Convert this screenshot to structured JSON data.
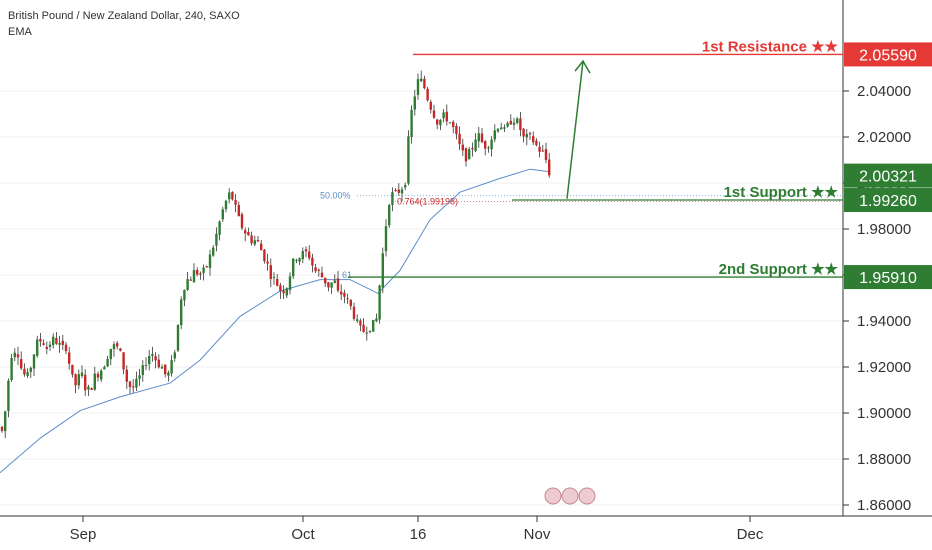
{
  "header": {
    "symbol_line": "British Pound / New Zealand Dollar, 240, SAXO",
    "indicator": "EMA"
  },
  "colors": {
    "bull": "#2e7d32",
    "bear": "#c62828",
    "wick": "#333333",
    "ema": "#5b8ec9",
    "resistance": "#e53935",
    "support": "#2e7d32",
    "fib": "#8fb3d9",
    "grid": "#f0f0f0"
  },
  "annotations": {
    "fib_50": "50.00%",
    "fib_764": "0.764(1.99198)",
    "fib_ema_tag": "61"
  },
  "chart_data": {
    "type": "candlestick",
    "title": "",
    "y_range": [
      1.86,
      2.06
    ],
    "y_ticks": [
      "1.86000",
      "1.88000",
      "1.90000",
      "1.92000",
      "1.94000",
      "1.96000",
      "1.98000",
      "2.00000",
      "2.02000",
      "2.04000"
    ],
    "x_ticks": [
      "Sep",
      "Oct",
      "16",
      "Nov",
      "Dec"
    ],
    "price_path": [
      [
        0,
        1.894
      ],
      [
        3,
        1.891
      ],
      [
        8,
        1.913
      ],
      [
        12,
        1.927
      ],
      [
        17,
        1.928
      ],
      [
        22,
        1.918
      ],
      [
        27,
        1.915
      ],
      [
        32,
        1.922
      ],
      [
        36,
        1.93
      ],
      [
        42,
        1.932
      ],
      [
        47,
        1.928
      ],
      [
        52,
        1.932
      ],
      [
        57,
        1.931
      ],
      [
        62,
        1.928
      ],
      [
        67,
        1.929
      ],
      [
        71,
        1.916
      ],
      [
        76,
        1.912
      ],
      [
        81,
        1.918
      ],
      [
        86,
        1.91
      ],
      [
        90,
        1.91
      ],
      [
        95,
        1.916
      ],
      [
        100,
        1.918
      ],
      [
        105,
        1.922
      ],
      [
        110,
        1.928
      ],
      [
        114,
        1.929
      ],
      [
        119,
        1.928
      ],
      [
        124,
        1.919
      ],
      [
        128,
        1.912
      ],
      [
        133,
        1.911
      ],
      [
        138,
        1.914
      ],
      [
        143,
        1.919
      ],
      [
        148,
        1.925
      ],
      [
        153,
        1.926
      ],
      [
        157,
        1.922
      ],
      [
        162,
        1.92
      ],
      [
        167,
        1.915
      ],
      [
        172,
        1.922
      ],
      [
        176,
        1.93
      ],
      [
        181,
        1.95
      ],
      [
        186,
        1.958
      ],
      [
        190,
        1.958
      ],
      [
        195,
        1.962
      ],
      [
        200,
        1.96
      ],
      [
        205,
        1.962
      ],
      [
        210,
        1.968
      ],
      [
        215,
        1.975
      ],
      [
        219,
        1.982
      ],
      [
        224,
        1.99
      ],
      [
        229,
        1.995
      ],
      [
        233,
        1.993
      ],
      [
        238,
        1.985
      ],
      [
        243,
        1.98
      ],
      [
        248,
        1.977
      ],
      [
        252,
        1.975
      ],
      [
        257,
        1.975
      ],
      [
        262,
        1.97
      ],
      [
        267,
        1.965
      ],
      [
        271,
        1.96
      ],
      [
        276,
        1.957
      ],
      [
        281,
        1.953
      ],
      [
        286,
        1.954
      ],
      [
        291,
        1.962
      ],
      [
        295,
        1.968
      ],
      [
        300,
        1.968
      ],
      [
        305,
        1.97
      ],
      [
        310,
        1.968
      ],
      [
        314,
        1.962
      ],
      [
        319,
        1.961
      ],
      [
        324,
        1.958
      ],
      [
        329,
        1.955
      ],
      [
        334,
        1.958
      ],
      [
        338,
        1.952
      ],
      [
        343,
        1.952
      ],
      [
        348,
        1.948
      ],
      [
        352,
        1.945
      ],
      [
        357,
        1.939
      ],
      [
        362,
        1.935
      ],
      [
        367,
        1.937
      ],
      [
        371,
        1.938
      ],
      [
        376,
        1.939
      ],
      [
        381,
        1.962
      ],
      [
        386,
        1.982
      ],
      [
        390,
        1.995
      ],
      [
        395,
        1.995
      ],
      [
        400,
        1.997
      ],
      [
        405,
        2.0
      ],
      [
        410,
        2.027
      ],
      [
        414,
        2.037
      ],
      [
        419,
        2.046
      ],
      [
        424,
        2.042
      ],
      [
        429,
        2.035
      ],
      [
        433,
        2.031
      ],
      [
        438,
        2.026
      ],
      [
        443,
        2.029
      ],
      [
        448,
        2.028
      ],
      [
        453,
        2.024
      ],
      [
        457,
        2.019
      ],
      [
        462,
        2.013
      ],
      [
        467,
        2.011
      ],
      [
        472,
        2.015
      ],
      [
        477,
        2.022
      ],
      [
        481,
        2.018
      ],
      [
        486,
        2.016
      ],
      [
        491,
        2.019
      ],
      [
        496,
        2.024
      ],
      [
        500,
        2.026
      ],
      [
        505,
        2.022
      ],
      [
        510,
        2.027
      ],
      [
        515,
        2.028
      ],
      [
        519,
        2.025
      ],
      [
        524,
        2.019
      ],
      [
        529,
        2.02
      ],
      [
        534,
        2.018
      ],
      [
        538,
        2.015
      ],
      [
        543,
        2.013
      ],
      [
        547,
        2.009
      ],
      [
        550,
        2.003
      ]
    ],
    "ema": [
      [
        0,
        1.874
      ],
      [
        40,
        1.889
      ],
      [
        80,
        1.901
      ],
      [
        120,
        1.907
      ],
      [
        170,
        1.913
      ],
      [
        200,
        1.923
      ],
      [
        240,
        1.942
      ],
      [
        280,
        1.953
      ],
      [
        320,
        1.958
      ],
      [
        350,
        1.958
      ],
      [
        378,
        1.952
      ],
      [
        400,
        1.962
      ],
      [
        430,
        1.984
      ],
      [
        460,
        1.996
      ],
      [
        500,
        2.002
      ],
      [
        530,
        2.006
      ],
      [
        548,
        2.005
      ]
    ],
    "levels": [
      {
        "label": "1st Resistance ★★",
        "price": 2.0559,
        "badge": "2.05590",
        "kind": "resistance"
      },
      {
        "label": "1st Support ★★",
        "price": 1.9926,
        "badge": "1.99260",
        "kind": "support"
      },
      {
        "label": "2nd Support ★★",
        "price": 1.9591,
        "badge": "1.95910",
        "kind": "support"
      }
    ],
    "current_price": {
      "value": 2.00321,
      "label": "2.00321"
    },
    "projection_arrow": {
      "from": [
        567,
        1.9932
      ],
      "to": [
        583,
        2.053
      ]
    }
  }
}
